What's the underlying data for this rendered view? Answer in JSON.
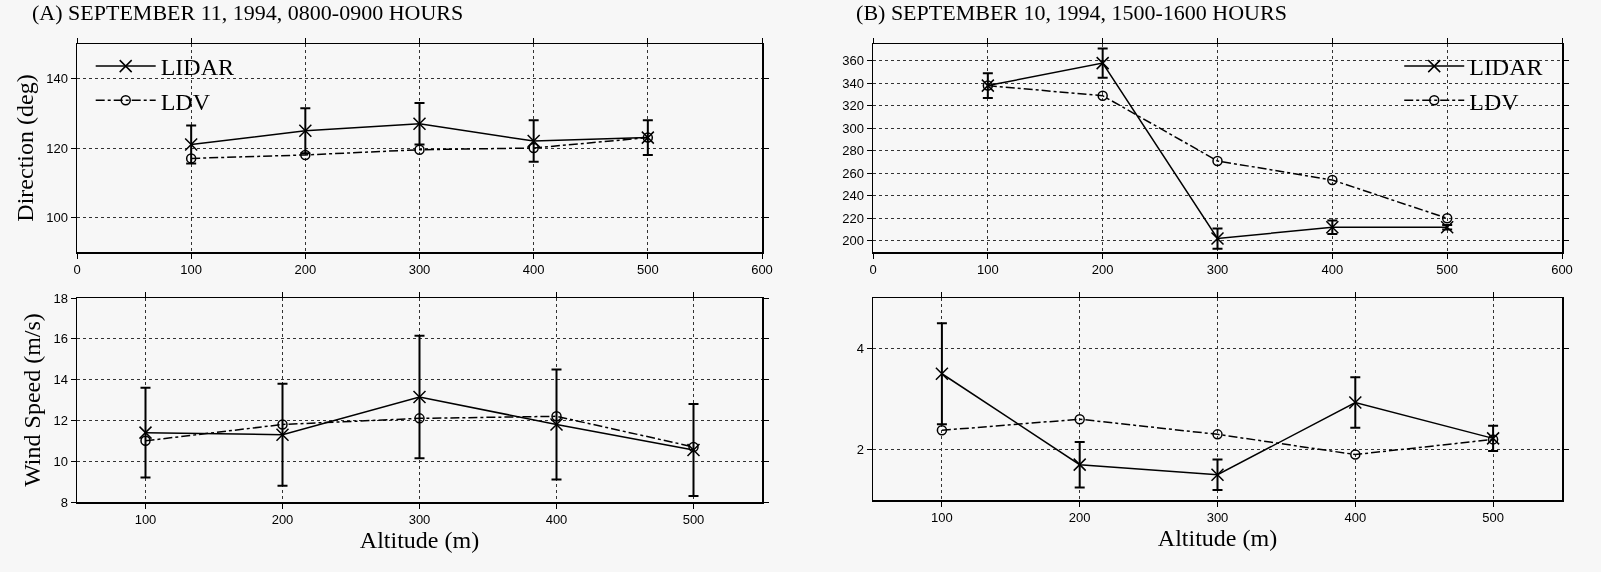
{
  "chart_data": [
    {
      "type": "line",
      "title": "(A) SEPTEMBER 11, 1994, 0800-0900 HOURS",
      "ylabel": "Direction (deg)",
      "x": [
        100,
        200,
        300,
        400,
        500
      ],
      "xlim": [
        0,
        600
      ],
      "xticks": [
        0,
        100,
        200,
        300,
        400,
        500,
        600
      ],
      "ylim": [
        90,
        150
      ],
      "yticks": [
        100,
        120,
        140
      ],
      "grid": true,
      "legend": "top left",
      "series": [
        {
          "name": "LIDAR",
          "color": "#000000",
          "marker": "cross",
          "line_style": "solid",
          "values": [
            121,
            125,
            127,
            122,
            123
          ],
          "errors": [
            5.5,
            6.5,
            6,
            6,
            5
          ]
        },
        {
          "name": "LDV",
          "color": "#000000",
          "marker": "circle",
          "line_style": "dashed",
          "values": [
            117,
            118,
            119.5,
            120,
            123
          ]
        }
      ]
    },
    {
      "type": "line",
      "xlabel": "Altitude (m)",
      "ylabel": "Wind Speed (m/s)",
      "x": [
        100,
        200,
        300,
        400,
        500
      ],
      "xlim": [
        50,
        550
      ],
      "xticks": [
        100,
        200,
        300,
        400,
        500
      ],
      "ylim": [
        8,
        18
      ],
      "yticks": [
        8,
        10,
        12,
        14,
        16,
        18
      ],
      "grid": true,
      "series": [
        {
          "color": "#000000",
          "marker": "cross",
          "line_style": "solid",
          "values": [
            11.4,
            11.3,
            13.15,
            11.8,
            10.55
          ],
          "errors": [
            2.2,
            2.5,
            3,
            2.7,
            2.25
          ]
        },
        {
          "color": "#000000",
          "marker": "circle",
          "line_style": "dashed",
          "values": [
            11.0,
            11.8,
            12.1,
            12.2,
            10.7
          ]
        }
      ]
    },
    {
      "type": "line",
      "title": "(B) SEPTEMBER 10, 1994, 1500-1600 HOURS",
      "x": [
        100,
        200,
        300,
        400,
        500
      ],
      "xlim": [
        0,
        600
      ],
      "xticks": [
        0,
        100,
        200,
        300,
        400,
        500,
        600
      ],
      "ylim": [
        190,
        375
      ],
      "yticks": [
        200,
        220,
        240,
        260,
        280,
        300,
        320,
        340,
        360
      ],
      "grid": true,
      "legend": "top right",
      "series": [
        {
          "name": "LIDAR",
          "color": "#000000",
          "marker": "cross",
          "line_style": "solid",
          "values": [
            338,
            358,
            202,
            212,
            212
          ],
          "errors": [
            11,
            13,
            9,
            6,
            2
          ]
        },
        {
          "name": "LDV",
          "color": "#000000",
          "marker": "circle",
          "line_style": "dashed",
          "values": [
            338,
            329,
            271,
            254,
            220
          ]
        }
      ]
    },
    {
      "type": "line",
      "xlabel": "Altitude (m)",
      "x": [
        100,
        200,
        300,
        400,
        500
      ],
      "xlim": [
        50,
        550
      ],
      "xticks": [
        100,
        200,
        300,
        400,
        500
      ],
      "ylim": [
        1,
        5
      ],
      "yticks": [
        2,
        4
      ],
      "grid": true,
      "series": [
        {
          "color": "#000000",
          "marker": "cross",
          "line_style": "solid",
          "values": [
            3.5,
            1.7,
            1.5,
            2.93,
            2.22
          ],
          "errors": [
            1,
            0.45,
            0.3,
            0.5,
            0.25
          ]
        },
        {
          "color": "#000000",
          "marker": "circle",
          "line_style": "dashed",
          "values": [
            2.38,
            2.6,
            2.3,
            1.9,
            2.2
          ]
        }
      ]
    }
  ]
}
